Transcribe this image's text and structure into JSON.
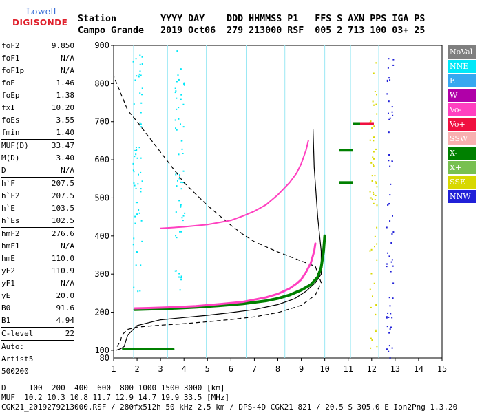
{
  "logo": {
    "top": "Lowell",
    "bottom": "DIGISONDE"
  },
  "header": {
    "line1": "Station        YYYY DAY    DDD HHMMSS P1   FFS S AXN PPS IGA PS",
    "line2": "Campo Grande   2019 Oct06  279 213000 RSF  005 2 713 100 03+ 25"
  },
  "params": [
    {
      "name": "foF2",
      "value": "9.850"
    },
    {
      "name": "foF1",
      "value": "N/A"
    },
    {
      "name": "foF1p",
      "value": "N/A"
    },
    {
      "name": "foE",
      "value": "1.46"
    },
    {
      "name": "foEp",
      "value": "1.38"
    },
    {
      "name": "fxI",
      "value": "10.20"
    },
    {
      "name": "foEs",
      "value": "3.55"
    },
    {
      "name": "fmin",
      "value": "1.40"
    },
    {
      "sep": true
    },
    {
      "name": "MUF(D)",
      "value": "33.47"
    },
    {
      "name": "M(D)",
      "value": "3.40"
    },
    {
      "name": "D",
      "value": "N/A"
    },
    {
      "sep": true
    },
    {
      "name": "h`F",
      "value": "207.5"
    },
    {
      "name": "h`F2",
      "value": "207.5"
    },
    {
      "name": "h`E",
      "value": "103.5"
    },
    {
      "name": "h`Es",
      "value": "102.5"
    },
    {
      "sep": true
    },
    {
      "name": "hmF2",
      "value": "276.6"
    },
    {
      "name": "hmF1",
      "value": "N/A"
    },
    {
      "name": "hmE",
      "value": "110.0"
    },
    {
      "name": "yF2",
      "value": "110.9"
    },
    {
      "name": "yF1",
      "value": "N/A"
    },
    {
      "name": "yE",
      "value": "20.0"
    },
    {
      "name": "B0",
      "value": "91.6"
    },
    {
      "name": "B1",
      "value": "4.94"
    },
    {
      "sep": true
    },
    {
      "name": "C-level",
      "value": "22"
    },
    {
      "sep": true
    },
    {
      "name": "Auto:",
      "value": ""
    },
    {
      "name": "Artist5",
      "value": ""
    },
    {
      "name": "500200",
      "value": ""
    }
  ],
  "legend": [
    {
      "label": "NoVal",
      "color": "#7f7f7f"
    },
    {
      "label": "NNE",
      "color": "#00e8f8"
    },
    {
      "label": "E",
      "color": "#36a8f0"
    },
    {
      "label": "W",
      "color": "#b000a8"
    },
    {
      "label": "Vo-",
      "color": "#ff40c0"
    },
    {
      "label": "Vo+",
      "color": "#f01040"
    },
    {
      "label": "SSW",
      "color": "#f8b0b0"
    },
    {
      "label": "X-",
      "color": "#008000"
    },
    {
      "label": "X+",
      "color": "#78c050"
    },
    {
      "label": "SSE",
      "color": "#d8d800"
    },
    {
      "label": "NNW",
      "color": "#2020d8"
    }
  ],
  "footer": {
    "line1": "D     100  200  400  600  800 1000 1500 3000 [km]",
    "line2": "MUF  10.2 10.3 10.8 11.7 12.9 14.7 19.9 33.5 [MHz]",
    "line3": "CGK21_2019279213000.RSF / 280fx512h 50 kHz 2.5 km / DPS-4D CGK21 821 / 20.5 S 305.0 E Ion2Png 1.3.20"
  },
  "chart_data": {
    "type": "scatter",
    "xlabel": "",
    "ylabel": "",
    "xlim": [
      1,
      15
    ],
    "ylim": [
      80,
      900
    ],
    "x_ticks": [
      1,
      2,
      3,
      4,
      5,
      6,
      7,
      8,
      9,
      10,
      11,
      12,
      13,
      14,
      15
    ],
    "y_ticks": [
      100,
      200,
      300,
      400,
      500,
      600,
      700,
      800,
      900
    ],
    "grid_vertical_x": [
      1.85,
      3.3,
      4.95,
      6.65,
      8.3,
      10.0,
      11.1,
      12.3
    ],
    "o_trace": {
      "color": "#ff40c0",
      "x": [
        1.9,
        2.5,
        3.5,
        4.5,
        5.5,
        6.5,
        7.5,
        8.0,
        8.5,
        8.8,
        9.0,
        9.2,
        9.4,
        9.55,
        9.6
      ],
      "y": [
        210,
        211,
        213,
        216,
        221,
        227,
        239,
        248,
        262,
        275,
        286,
        305,
        328,
        360,
        380
      ]
    },
    "x_trace": {
      "color": "#008000",
      "x": [
        1.9,
        2.5,
        3.5,
        4.5,
        5.5,
        6.5,
        7.5,
        8.0,
        8.5,
        9.0,
        9.4,
        9.7,
        9.85,
        9.95,
        10.0
      ],
      "y": [
        207,
        208,
        210,
        213,
        217,
        222,
        230,
        236,
        245,
        258,
        272,
        292,
        318,
        360,
        400
      ]
    },
    "upper_o_trace": {
      "color": "#ff40c0",
      "x": [
        3.0,
        4.0,
        5.0,
        6.0,
        6.5,
        7.0,
        7.5,
        8.0,
        8.5,
        8.8,
        9.0,
        9.2,
        9.3
      ],
      "y": [
        420,
        424,
        430,
        441,
        452,
        465,
        482,
        508,
        540,
        565,
        590,
        625,
        650
      ]
    },
    "es_trace": {
      "color": "#008000",
      "x": [
        1.4,
        1.8,
        2.2,
        2.6,
        3.0,
        3.3,
        3.55
      ],
      "y": [
        104,
        104,
        103,
        103,
        103,
        103,
        103
      ]
    },
    "profile_solid": {
      "color": "#000000",
      "x": [
        1.1,
        1.3,
        1.45,
        1.6,
        2.0,
        3.0,
        4.0,
        5.0,
        6.0,
        7.0,
        8.0,
        8.7,
        9.2,
        9.6,
        9.85,
        9.85,
        9.7,
        9.55,
        9.5
      ],
      "y": [
        100,
        104,
        110,
        140,
        165,
        180,
        186,
        192,
        199,
        207,
        220,
        235,
        255,
        277,
        300,
        360,
        450,
        580,
        680
      ]
    },
    "profile_dashed": {
      "color": "#000000",
      "x": [
        1.15,
        1.3,
        1.35,
        1.6,
        2.0,
        3.0,
        4.0,
        5.0,
        6.0,
        7.0,
        8.0,
        9.0,
        9.6,
        9.85,
        9.6,
        8.0,
        7.0,
        6.5,
        6.0,
        5.0,
        4.0,
        3.0,
        2.0,
        1.6,
        1.0
      ],
      "y": [
        110,
        125,
        140,
        155,
        161,
        166,
        170,
        175,
        181,
        188,
        199,
        218,
        245,
        277,
        320,
        358,
        385,
        405,
        428,
        480,
        540,
        620,
        700,
        730,
        820
      ]
    },
    "f2_clusters": [
      {
        "color": "#008000",
        "x": 10.9,
        "y": 625
      },
      {
        "color": "#008000",
        "x": 10.9,
        "y": 540
      },
      {
        "color": "#008000",
        "x": 11.5,
        "y": 695
      },
      {
        "color": "#f01040",
        "x": 11.8,
        "y": 695
      }
    ],
    "sporadic_bands": [
      {
        "color": "#d8d800",
        "x": [
          11.9,
          12.2
        ],
        "y": [
          100,
          870
        ]
      },
      {
        "color": "#2020d8",
        "x": [
          12.6,
          12.9
        ],
        "y": [
          80,
          900
        ]
      },
      {
        "color": "#00e8f8",
        "x": [
          1.8,
          2.2
        ],
        "y": [
          250,
          890
        ]
      },
      {
        "color": "#00e8f8",
        "x": [
          3.6,
          4.0
        ],
        "y": [
          250,
          890
        ]
      }
    ]
  }
}
